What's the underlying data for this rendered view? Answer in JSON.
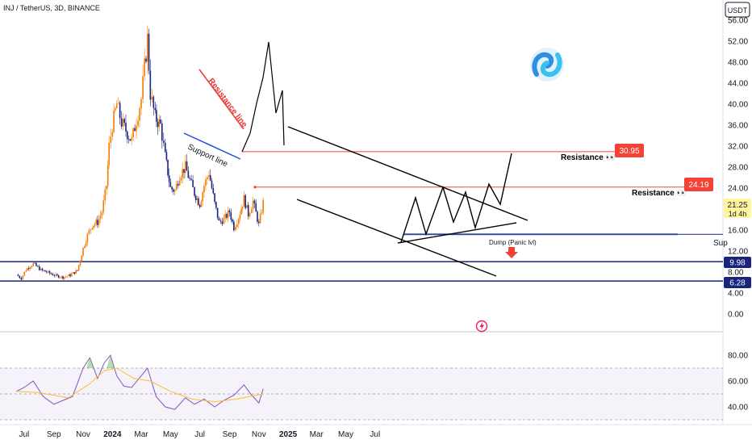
{
  "header": {
    "symbol_line": "INJ / TetherUS, 3D, BINANCE",
    "currency_badge": "USDT"
  },
  "chart_data": {
    "type": "candlestick",
    "title": "INJ / TetherUS, 3D, BINANCE",
    "price_axis": {
      "ticks": [
        "56.00",
        "52.00",
        "48.00",
        "44.00",
        "40.00",
        "36.00",
        "32.00",
        "28.00",
        "24.00",
        "20.00",
        "16.00",
        "12.00",
        "8.00",
        "4.00",
        "0.00"
      ],
      "range": [
        0,
        56
      ]
    },
    "time_axis": {
      "ticks": [
        "Jul",
        "Sep",
        "Nov",
        "2024",
        "Mar",
        "May",
        "Jul",
        "Sep",
        "Nov",
        "2025",
        "Mar",
        "May",
        "Jul"
      ]
    },
    "price_series": [
      [
        "2023-06-15",
        7.5
      ],
      [
        "2023-06-25",
        6.8
      ],
      [
        "2023-07-05",
        8.5
      ],
      [
        "2023-07-20",
        9.6
      ],
      [
        "2023-08-05",
        8.4
      ],
      [
        "2023-08-20",
        7.9
      ],
      [
        "2023-09-05",
        7.3
      ],
      [
        "2023-09-20",
        7.0
      ],
      [
        "2023-10-05",
        7.4
      ],
      [
        "2023-10-20",
        8.3
      ],
      [
        "2023-11-01",
        12.5
      ],
      [
        "2023-11-10",
        15.0
      ],
      [
        "2023-11-20",
        17.0
      ],
      [
        "2023-12-01",
        17.5
      ],
      [
        "2023-12-10",
        19.5
      ],
      [
        "2023-12-20",
        24.5
      ],
      [
        "2023-12-25",
        32.0
      ],
      [
        "2024-01-01",
        36.0
      ],
      [
        "2024-01-10",
        40.0
      ],
      [
        "2024-01-20",
        36.5
      ],
      [
        "2024-02-01",
        34.5
      ],
      [
        "2024-02-10",
        33.0
      ],
      [
        "2024-02-20",
        37.0
      ],
      [
        "2024-03-01",
        41.0
      ],
      [
        "2024-03-08",
        47.0
      ],
      [
        "2024-03-14",
        52.5
      ],
      [
        "2024-03-20",
        42.0
      ],
      [
        "2024-03-30",
        37.5
      ],
      [
        "2024-04-10",
        36.0
      ],
      [
        "2024-04-20",
        30.0
      ],
      [
        "2024-05-01",
        24.0
      ],
      [
        "2024-05-10",
        23.5
      ],
      [
        "2024-05-20",
        26.5
      ],
      [
        "2024-06-01",
        28.0
      ],
      [
        "2024-06-10",
        25.5
      ],
      [
        "2024-06-20",
        23.0
      ],
      [
        "2024-07-01",
        21.0
      ],
      [
        "2024-07-10",
        24.5
      ],
      [
        "2024-07-20",
        27.0
      ],
      [
        "2024-08-01",
        21.0
      ],
      [
        "2024-08-10",
        17.5
      ],
      [
        "2024-08-20",
        18.0
      ],
      [
        "2024-09-01",
        19.5
      ],
      [
        "2024-09-10",
        16.5
      ],
      [
        "2024-09-20",
        18.5
      ],
      [
        "2024-10-01",
        22.0
      ],
      [
        "2024-10-10",
        19.0
      ],
      [
        "2024-10-20",
        21.5
      ],
      [
        "2024-11-01",
        17.0
      ],
      [
        "2024-11-10",
        21.25
      ]
    ],
    "current_price": {
      "label": "21.25",
      "countdown": "1d 4h"
    },
    "resistance_levels": [
      {
        "label": "Resistance 👀",
        "value_label": "30.95",
        "value": 30.95
      },
      {
        "label": "Resistance 👀",
        "value_label": "24.19",
        "value": 24.19
      }
    ],
    "support_levels": [
      {
        "value_label": "9.98",
        "value": 9.98
      },
      {
        "value_label": "6.28",
        "value": 6.28
      }
    ],
    "annotations": {
      "resistance_line": "Resistance line",
      "support_line": "Support line",
      "dump": "Dump (Panic lvl)",
      "support_cutoff": "Sup"
    },
    "rsi": {
      "ticks": [
        "80.00",
        "60.00",
        "40.00"
      ],
      "levels": [
        70,
        50,
        30
      ],
      "series": [
        [
          "2023-06-15",
          52
        ],
        [
          "2023-07-01",
          55
        ],
        [
          "2023-07-20",
          60
        ],
        [
          "2023-08-10",
          48
        ],
        [
          "2023-09-01",
          42
        ],
        [
          "2023-09-20",
          45
        ],
        [
          "2023-10-10",
          48
        ],
        [
          "2023-11-01",
          70
        ],
        [
          "2023-11-15",
          78
        ],
        [
          "2023-12-01",
          62
        ],
        [
          "2023-12-15",
          74
        ],
        [
          "2023-12-28",
          80
        ],
        [
          "2024-01-10",
          64
        ],
        [
          "2024-01-25",
          56
        ],
        [
          "2024-02-10",
          55
        ],
        [
          "2024-03-01",
          64
        ],
        [
          "2024-03-14",
          70
        ],
        [
          "2024-04-01",
          48
        ],
        [
          "2024-04-20",
          40
        ],
        [
          "2024-05-10",
          38
        ],
        [
          "2024-06-01",
          47
        ],
        [
          "2024-06-20",
          42
        ],
        [
          "2024-07-10",
          46
        ],
        [
          "2024-08-01",
          40
        ],
        [
          "2024-08-20",
          45
        ],
        [
          "2024-09-10",
          49
        ],
        [
          "2024-10-01",
          57
        ],
        [
          "2024-10-15",
          50
        ],
        [
          "2024-11-01",
          43
        ],
        [
          "2024-11-10",
          54
        ]
      ],
      "ma_series": [
        [
          "2023-06-15",
          52
        ],
        [
          "2023-08-01",
          51
        ],
        [
          "2023-10-01",
          47
        ],
        [
          "2023-11-15",
          58
        ],
        [
          "2023-12-15",
          68
        ],
        [
          "2024-01-10",
          70
        ],
        [
          "2024-02-15",
          62
        ],
        [
          "2024-03-20",
          60
        ],
        [
          "2024-05-01",
          52
        ],
        [
          "2024-06-15",
          46
        ],
        [
          "2024-08-01",
          44
        ],
        [
          "2024-09-15",
          46
        ],
        [
          "2024-11-10",
          50
        ]
      ]
    }
  }
}
